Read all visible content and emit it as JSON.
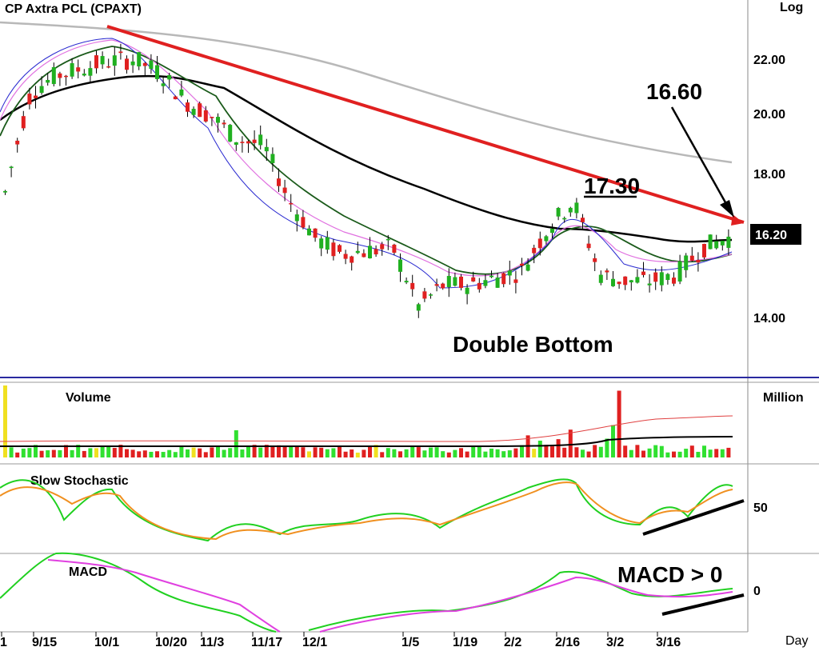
{
  "chart_data": {
    "type": "candlestick",
    "title": "CP  Axtra  PCL  (CPAXT)",
    "scale": "Log",
    "y_axis": {
      "ticks": [
        14.0,
        16.2,
        18.0,
        20.0,
        22.0
      ],
      "current_price": "16.20"
    },
    "x_axis": {
      "ticks": [
        "1",
        "9/15",
        "10/1",
        "10/20",
        "11/3",
        "11/17",
        "12/1",
        "1/5",
        "1/19",
        "2/2",
        "2/16",
        "3/2",
        "3/16"
      ],
      "unit": "Day"
    },
    "annotations": [
      {
        "text": "16.60",
        "kind": "price-label"
      },
      {
        "text": "17.30",
        "kind": "resistance-label"
      },
      {
        "text": "Double Bottom",
        "kind": "pattern-label"
      },
      {
        "text": "MACD > 0",
        "kind": "indicator-label"
      }
    ],
    "price_series": {
      "close": [
        17.8,
        21.6,
        22.3,
        22.6,
        22.9,
        23.0,
        22.4,
        21.2,
        20.6,
        19.7,
        19.5,
        17.5,
        16.3,
        15.8,
        15.9,
        16.0,
        14.3,
        14.9,
        14.9,
        15.1,
        15.3,
        16.6,
        17.5,
        15.2,
        15.0,
        15.0,
        15.2,
        16.0,
        16.3
      ],
      "ma_long": [
        19.2,
        20.5,
        21.0,
        21.4,
        21.5,
        21.5,
        20.9,
        20.0,
        19.2,
        18.7,
        18.4,
        18.0,
        17.7,
        17.4,
        16.8,
        16.5,
        16.4,
        16.4,
        16.2,
        16.2,
        16.2
      ]
    },
    "panels": [
      {
        "name": "Volume",
        "unit": "Million"
      },
      {
        "name": "Slow  Stochastic",
        "tick": "50"
      },
      {
        "name": "MACD",
        "tick": "0"
      }
    ]
  }
}
